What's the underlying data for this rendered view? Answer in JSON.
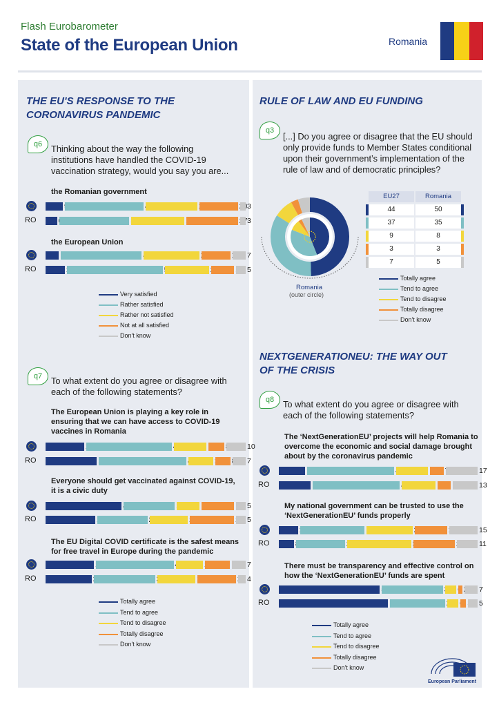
{
  "header": {
    "subtitle": "Flash Eurobarometer",
    "title": "State of the European Union",
    "country": "Romania"
  },
  "colors": {
    "navy": "#1f3b82",
    "teal": "#7fbfc4",
    "yellow": "#f2d63c",
    "orange": "#f1913a",
    "grey": "#c8c8c8",
    "flag_blue": "#1f3b82",
    "flag_yellow": "#f7d117",
    "flag_red": "#d0212c"
  },
  "sections": {
    "s1": {
      "title": "THE EU'S  RESPONSE TO THE\nCORONAVIRUS PANDEMIC"
    },
    "s2": {
      "title": "RULE OF LAW AND EU FUNDING"
    },
    "s3": {
      "title": "NEXTGENERATIONEU: THE WAY OUT\nOF THE CRISIS"
    }
  },
  "questions": {
    "q6": {
      "tag": "q6",
      "text": "Thinking about the way the following\ninstitutions have handled the COVID-19\nvaccination strategy, would you say you are..."
    },
    "q7": {
      "tag": "q7",
      "text": "To what extent do you agree or disagree with\neach of the following statements?"
    },
    "q3": {
      "tag": "q3",
      "text": "[...]  Do you agree or disagree that the EU should\nonly provide funds to Member States conditional\nupon their government’s implementation of the\nrule of law and of democratic principles?"
    },
    "q8": {
      "tag": "q8",
      "text": "To what extent do you agree or disagree with\neach of the following statements?"
    }
  },
  "row_labels": {
    "ro": "RO"
  },
  "legends": {
    "satisfaction": [
      "Very satisfied",
      "Rather satisfied",
      "Rather not satisfied",
      "Not at all satisfied",
      "Don't know"
    ],
    "agreement": [
      "Totally agree",
      "Tend to agree",
      "Tend to disagree",
      "Totally disagree",
      "Don't know"
    ]
  },
  "donut": {
    "caption": "Romania",
    "note": "(outer circle)"
  },
  "table": {
    "headers": [
      "EU27",
      "Romania"
    ]
  },
  "footer": {
    "logo_text": "European Parliament"
  },
  "chart_data": [
    {
      "type": "bar",
      "id": "q6",
      "stacked": true,
      "orientation": "horizontal",
      "legend": [
        "Very satisfied",
        "Rather satisfied",
        "Rather not satisfied",
        "Not at all satisfied",
        "Don't know"
      ],
      "items": [
        {
          "label": "the Romanian government",
          "eu": [
            9,
            41,
            27,
            20,
            3
          ],
          "ro": [
            6,
            37,
            28,
            27,
            3
          ]
        },
        {
          "label": "the European Union",
          "eu": [
            7,
            42,
            29,
            15,
            7
          ],
          "ro": [
            10,
            50,
            23,
            12,
            5
          ]
        }
      ]
    },
    {
      "type": "bar",
      "id": "q7",
      "stacked": true,
      "orientation": "horizontal",
      "legend": [
        "Totally agree",
        "Tend to agree",
        "Tend to disagree",
        "Totally disagree",
        "Don't know"
      ],
      "items": [
        {
          "label": "The European Union is playing a key role in\nensuring that we can have access to COVID-19\nvaccines in Romania",
          "eu": [
            20,
            44,
            17,
            8,
            10
          ],
          "ro": [
            27,
            46,
            13,
            8,
            7
          ]
        },
        {
          "label": "Everyone should get vaccinated against COVID-19,\nit is a civic duty",
          "eu": [
            40,
            27,
            12,
            17,
            5
          ],
          "ro": [
            26,
            26,
            20,
            23,
            5
          ]
        },
        {
          "label": "The EU Digital COVID certificate is the safest means\nfor free travel in Europe during the pandemic",
          "eu": [
            25,
            40,
            14,
            13,
            7
          ],
          "ro": [
            24,
            32,
            20,
            20,
            4
          ]
        }
      ]
    },
    {
      "type": "pie",
      "id": "q3",
      "style": "donut",
      "legend": [
        "Totally agree",
        "Tend to agree",
        "Tend to disagree",
        "Totally disagree",
        "Don't know"
      ],
      "eu27": [
        44,
        37,
        9,
        3,
        7
      ],
      "romania": [
        50,
        35,
        8,
        3,
        5
      ]
    },
    {
      "type": "bar",
      "id": "q8",
      "stacked": true,
      "orientation": "horizontal",
      "legend": [
        "Totally agree",
        "Tend to agree",
        "Tend to disagree",
        "Totally disagree",
        "Don't know"
      ],
      "items": [
        {
          "label": "The ‘NextGenerationEU’ projects will help Romania to\novercome the economic and social damage brought\nabout by the coronavirus pandemic",
          "eu": [
            14,
            46,
            17,
            7,
            17
          ],
          "ro": [
            17,
            46,
            18,
            7,
            13
          ]
        },
        {
          "label": "My national government can be trusted to use the\n‘NextGenerationEU’ funds properly",
          "eu": [
            10,
            34,
            24,
            17,
            15
          ],
          "ro": [
            8,
            26,
            34,
            22,
            11
          ]
        },
        {
          "label": "There must be transparency and effective control on\nhow the ‘NextGenerationEU’ funds are spent",
          "eu": [
            53,
            32,
            6,
            2,
            7
          ],
          "ro": [
            58,
            29,
            6,
            3,
            5
          ]
        }
      ]
    }
  ]
}
